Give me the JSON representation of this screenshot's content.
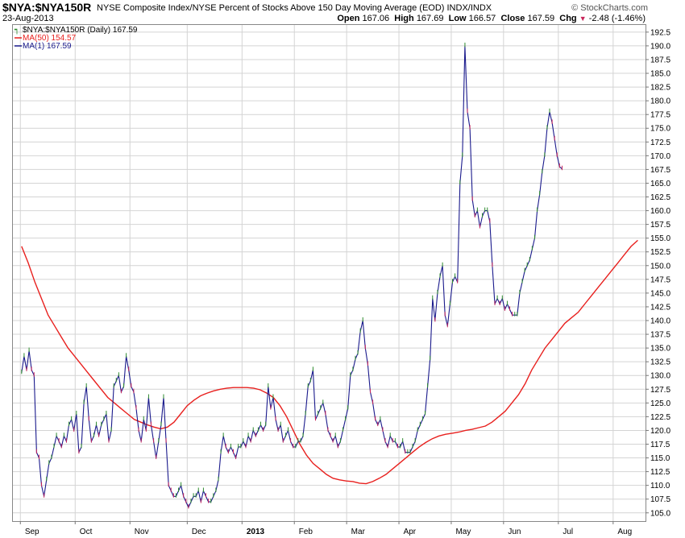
{
  "header": {
    "symbol": "$NYA:$NYA150R",
    "description": "NYSE Composite Index/NYSE Percent of Stocks Above 150 Day Moving Average (EOD)  INDX/INDX",
    "date": "23-Aug-2013",
    "copyright": "© StockCharts.com",
    "open_label": "Open",
    "open": "167.06",
    "high_label": "High",
    "high": "167.69",
    "low_label": "Low",
    "low": "166.57",
    "close_label": "Close",
    "close": "167.59",
    "chg_label": "Chg",
    "chg": "-2.48 (-1.46%)",
    "chg_icon": "down-triangle-icon"
  },
  "legend": {
    "price": "$NYA:$NYA150R (Daily) 167.59",
    "ma50": "MA(50) 154.57",
    "ma1": "MA(1) 167.59"
  },
  "colors": {
    "price": "#1a1a8c",
    "ma50": "#e8201e",
    "up_tick": "#2e8b2e",
    "down_tick": "#c8245a",
    "grid": "#d4d4d4"
  },
  "chart_data": {
    "type": "line",
    "y_ticks": [
      "105.0",
      "107.5",
      "110.0",
      "112.5",
      "115.0",
      "117.5",
      "120.0",
      "122.5",
      "125.0",
      "127.5",
      "130.0",
      "132.5",
      "135.0",
      "137.5",
      "140.0",
      "142.5",
      "145.0",
      "147.5",
      "150.0",
      "152.5",
      "155.0",
      "157.5",
      "160.0",
      "162.5",
      "165.0",
      "167.5",
      "170.0",
      "172.5",
      "175.0",
      "177.5",
      "180.0",
      "182.5",
      "185.0",
      "187.5",
      "190.0",
      "192.5"
    ],
    "ylim": [
      103.5,
      193.8
    ],
    "x_labels": [
      "Sep",
      "Oct",
      "Nov",
      "Dec",
      "2013",
      "Feb",
      "Mar",
      "Apr",
      "May",
      "Jun",
      "Jul",
      "Aug"
    ],
    "x_label_pos": [
      0.5,
      22.5,
      44.5,
      67.5,
      89.5,
      110.5,
      131.5,
      152.5,
      173.5,
      194.5,
      216.5,
      238.5
    ],
    "x_grid": [
      0,
      22,
      44,
      67,
      89,
      110,
      131,
      152,
      173,
      194,
      216,
      238
    ],
    "x_range": [
      -3,
      251
    ],
    "series": [
      {
        "name": "MA(1)",
        "values": [
          130.5,
          133.5,
          131,
          134.5,
          131,
          130,
          116,
          115,
          110,
          108,
          111,
          114,
          115,
          117,
          119,
          118,
          117,
          119,
          118,
          121,
          122,
          120,
          123,
          116,
          117,
          125,
          128,
          122,
          118,
          119,
          121,
          119,
          121,
          122,
          123,
          118,
          120,
          128,
          129,
          130,
          127,
          128,
          133.5,
          131,
          128,
          127,
          124,
          120,
          118,
          122,
          120,
          126,
          121,
          118,
          115,
          118,
          121,
          126,
          118,
          110,
          109,
          108,
          108,
          109,
          110,
          108,
          107,
          106,
          107,
          108,
          108,
          109,
          107,
          109,
          108,
          107,
          107,
          108,
          109,
          111,
          116,
          119,
          117,
          116,
          117,
          116,
          115,
          117,
          117,
          118,
          117,
          119,
          118,
          120,
          119,
          120,
          121,
          120,
          121,
          128,
          124,
          126,
          122,
          120,
          121,
          118,
          119,
          120,
          118,
          117,
          117,
          118,
          118,
          119,
          123,
          128,
          129,
          131,
          122,
          123,
          124,
          125,
          123,
          120,
          119,
          118,
          119,
          117,
          118,
          120,
          122,
          124,
          130,
          131,
          133,
          134,
          138,
          140,
          135,
          132,
          127,
          125,
          122,
          121,
          122,
          120,
          118,
          117,
          119,
          118,
          118,
          117,
          117,
          118,
          116,
          116,
          116,
          117,
          118,
          120,
          121,
          122,
          123,
          128,
          133,
          144,
          140,
          145,
          148,
          150,
          141,
          139,
          143,
          147,
          148,
          147,
          165,
          170,
          190,
          178,
          175,
          162,
          159,
          160,
          157,
          159,
          160,
          160,
          158,
          150,
          143,
          144,
          143,
          144,
          142,
          143,
          142,
          141,
          141,
          141,
          145,
          147,
          149,
          150,
          151,
          153,
          155,
          160,
          163,
          167,
          170,
          175,
          178,
          176,
          173,
          170,
          168,
          167.6
        ],
        "start_x": 0.5
      },
      {
        "name": "MA(50)",
        "values": [
          153.5,
          150.5,
          147,
          144,
          141,
          139,
          137,
          135,
          133.5,
          132,
          130.5,
          129,
          127.5,
          126,
          125,
          124,
          123,
          122,
          121.5,
          121,
          120.6,
          120.3,
          120.6,
          121.5,
          123,
          124.5,
          125.5,
          126.3,
          126.8,
          127.2,
          127.5,
          127.7,
          127.8,
          127.8,
          127.8,
          127.7,
          127.4,
          126.8,
          126,
          124.5,
          122.5,
          120,
          117.5,
          115.5,
          114,
          113,
          112,
          111.3,
          111,
          110.8,
          110.7,
          110.4,
          110.3,
          110.7,
          111.3,
          112,
          113,
          114,
          115,
          116,
          117,
          117.8,
          118.5,
          119,
          119.3,
          119.5,
          119.7,
          120,
          120.2,
          120.5,
          120.8,
          121.5,
          122.5,
          123.5,
          125,
          126.5,
          128.5,
          131,
          133,
          135,
          136.5,
          138,
          139.5,
          140.5,
          141.5,
          143,
          144.5,
          146,
          147.5,
          149,
          150.5,
          152,
          153.5,
          154.6
        ],
        "start_x": 0.5,
        "step": 2.66
      }
    ]
  }
}
